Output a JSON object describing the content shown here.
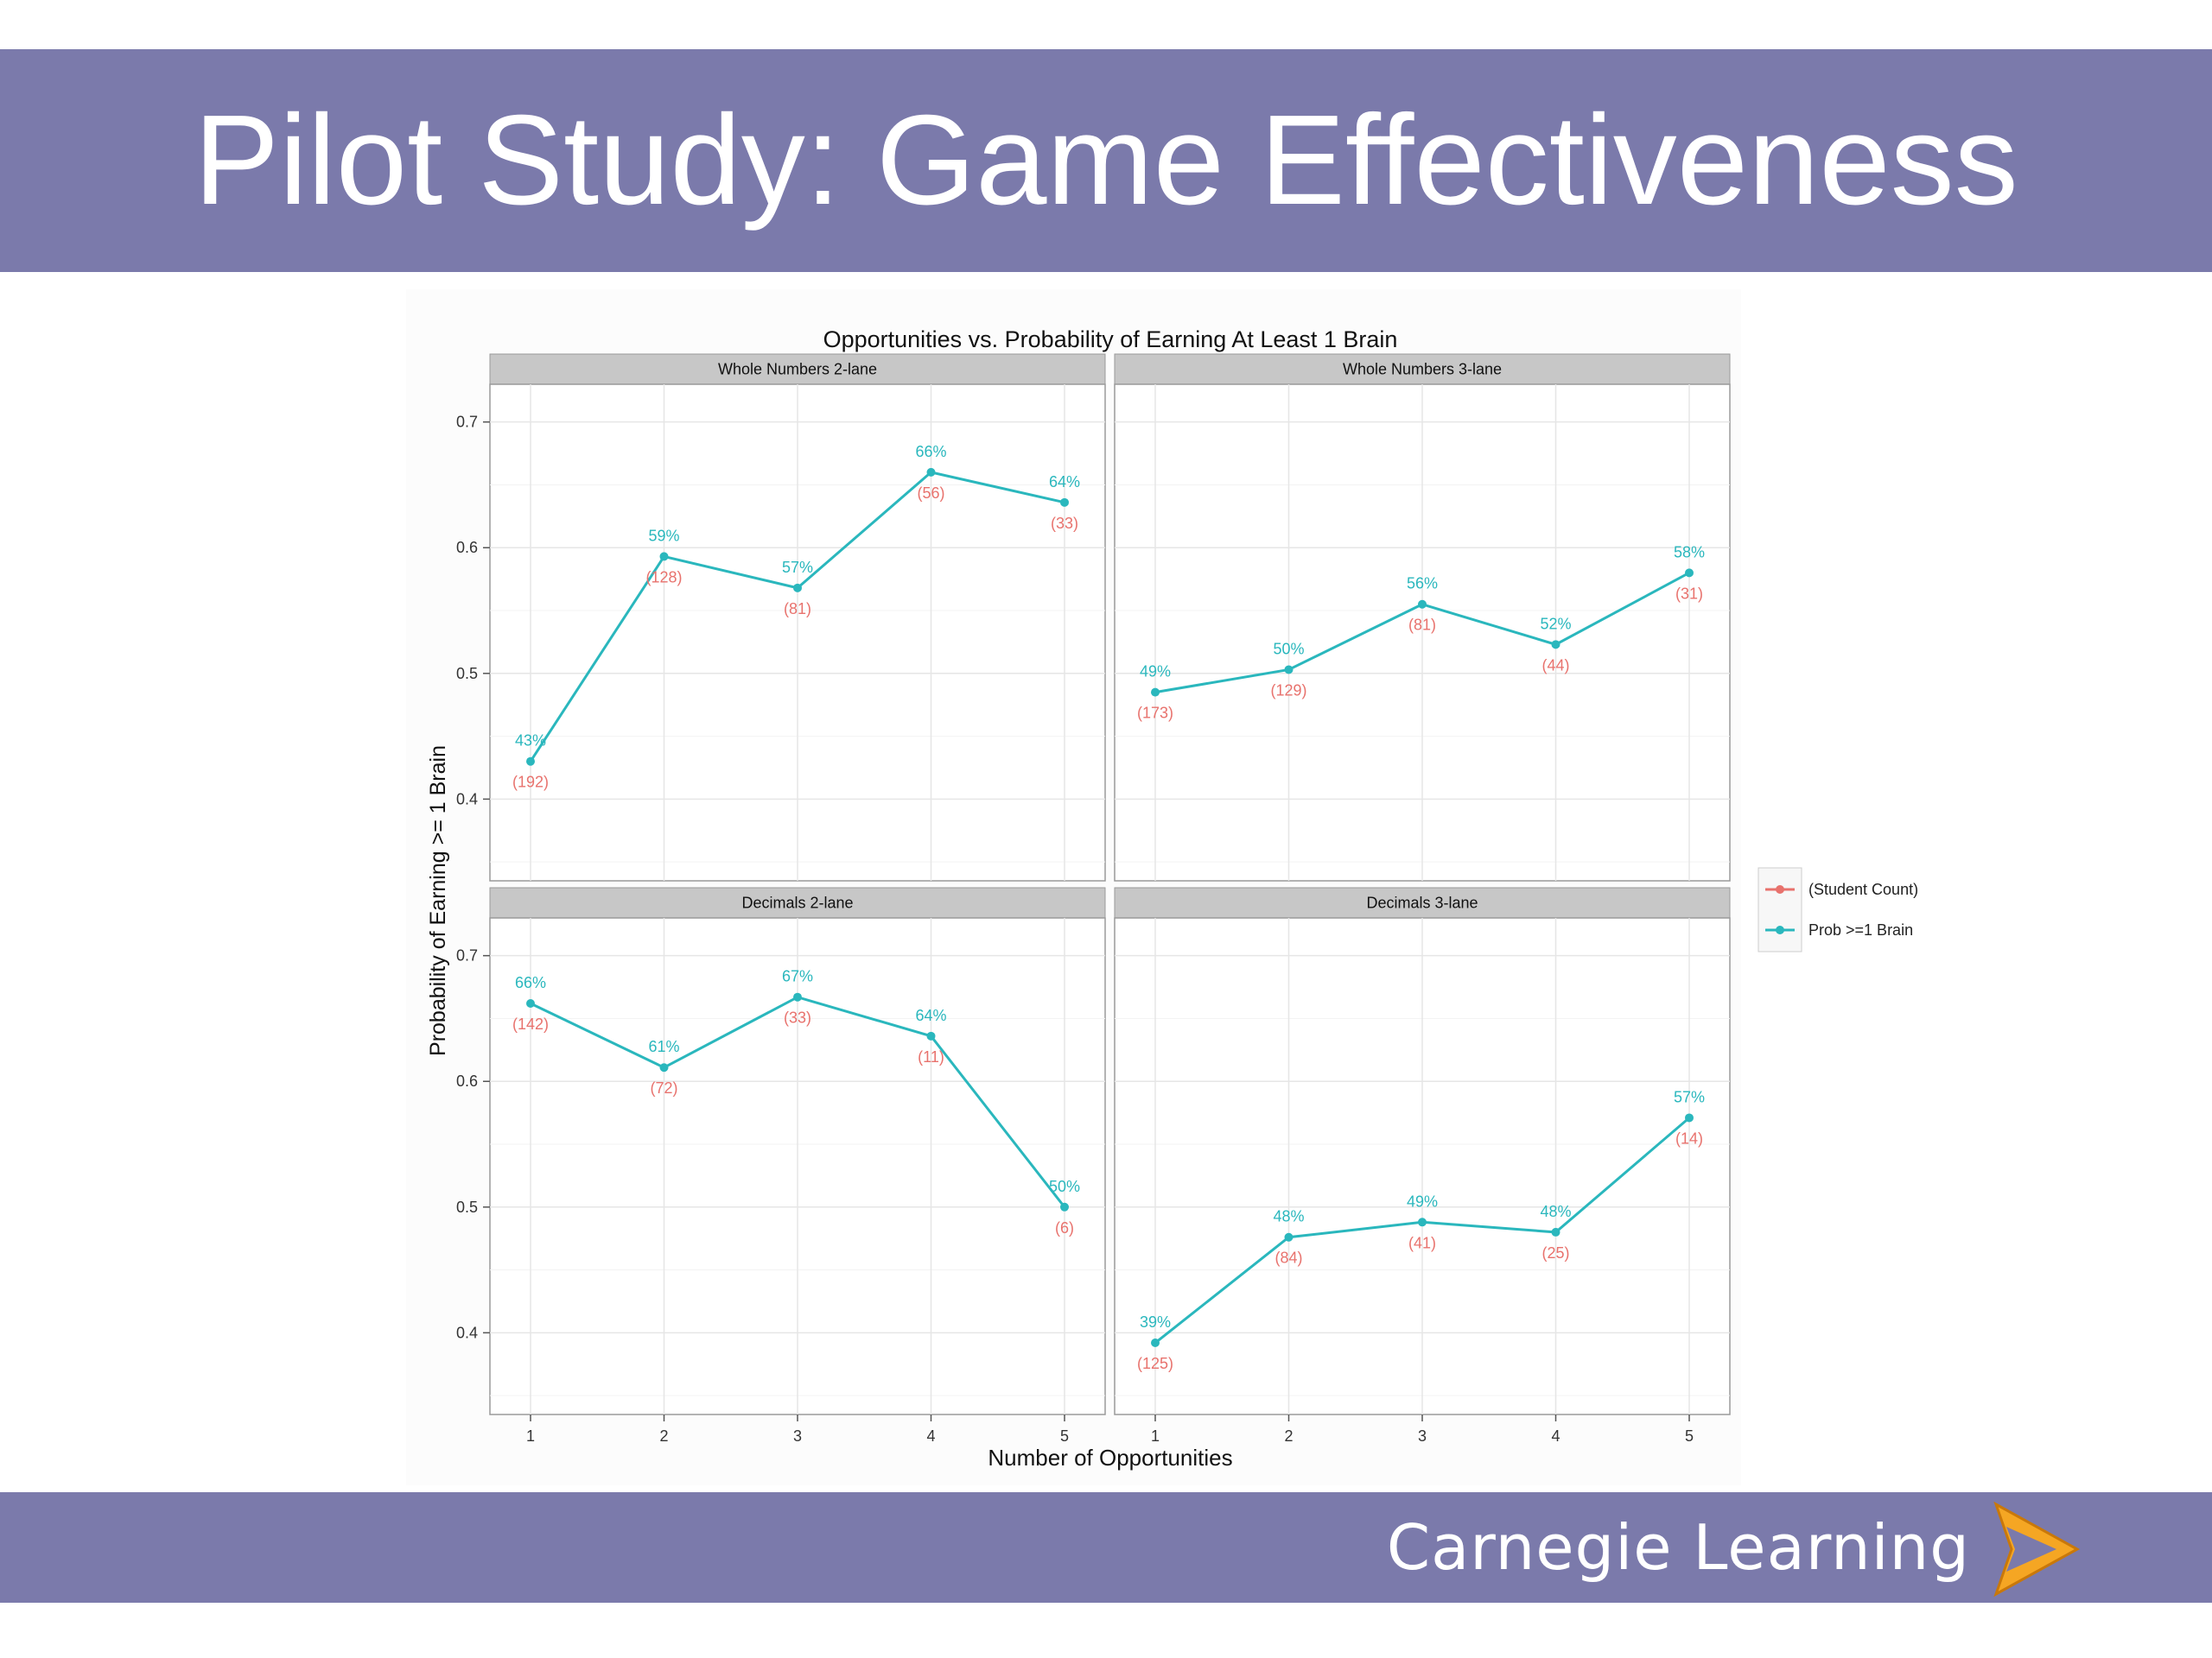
{
  "slide": {
    "title": "Pilot Study: Game Effectiveness",
    "brand": "Carnegie Learning",
    "header_color": "#7b7aab",
    "logo_icon": "chevron-right-icon",
    "logo_color": "#f5a623"
  },
  "chart_data": {
    "type": "line",
    "title": "Opportunities vs. Probability of Earning At Least 1 Brain",
    "xlabel": "Number of Opportunities",
    "ylabel": "Probability of Earning >= 1 Brain",
    "x": [
      1,
      2,
      3,
      4,
      5
    ],
    "x_ticks": [
      "1",
      "2",
      "3",
      "4",
      "5"
    ],
    "ylim": [
      0.335,
      0.73
    ],
    "y_ticks": [
      0.4,
      0.5,
      0.6,
      0.7
    ],
    "y_tick_labels": [
      "0.4",
      "0.5",
      "0.6",
      "0.7"
    ],
    "grid": true,
    "legend_position": "right",
    "legend": [
      {
        "label": "(Student Count)",
        "color": "#e8726d"
      },
      {
        "label": "Prob >=1 Brain",
        "color": "#2ab7bd"
      }
    ],
    "panels": [
      {
        "name": "Whole Numbers 2-lane",
        "values": [
          0.43,
          0.593,
          0.568,
          0.66,
          0.636
        ],
        "pct_labels": [
          "43%",
          "59%",
          "57%",
          "66%",
          "64%"
        ],
        "count_labels": [
          "(192)",
          "(128)",
          "(81)",
          "(56)",
          "(33)"
        ]
      },
      {
        "name": "Whole Numbers 3-lane",
        "values": [
          0.485,
          0.503,
          0.555,
          0.523,
          0.58
        ],
        "pct_labels": [
          "49%",
          "50%",
          "56%",
          "52%",
          "58%"
        ],
        "count_labels": [
          "(173)",
          "(129)",
          "(81)",
          "(44)",
          "(31)"
        ]
      },
      {
        "name": "Decimals 2-lane",
        "values": [
          0.662,
          0.611,
          0.667,
          0.636,
          0.5
        ],
        "pct_labels": [
          "66%",
          "61%",
          "67%",
          "64%",
          "50%"
        ],
        "count_labels": [
          "(142)",
          "(72)",
          "(33)",
          "(11)",
          "(6)"
        ]
      },
      {
        "name": "Decimals 3-lane",
        "values": [
          0.392,
          0.476,
          0.488,
          0.48,
          0.571
        ],
        "pct_labels": [
          "39%",
          "48%",
          "49%",
          "48%",
          "57%"
        ],
        "count_labels": [
          "(125)",
          "(84)",
          "(41)",
          "(25)",
          "(14)"
        ]
      }
    ]
  }
}
